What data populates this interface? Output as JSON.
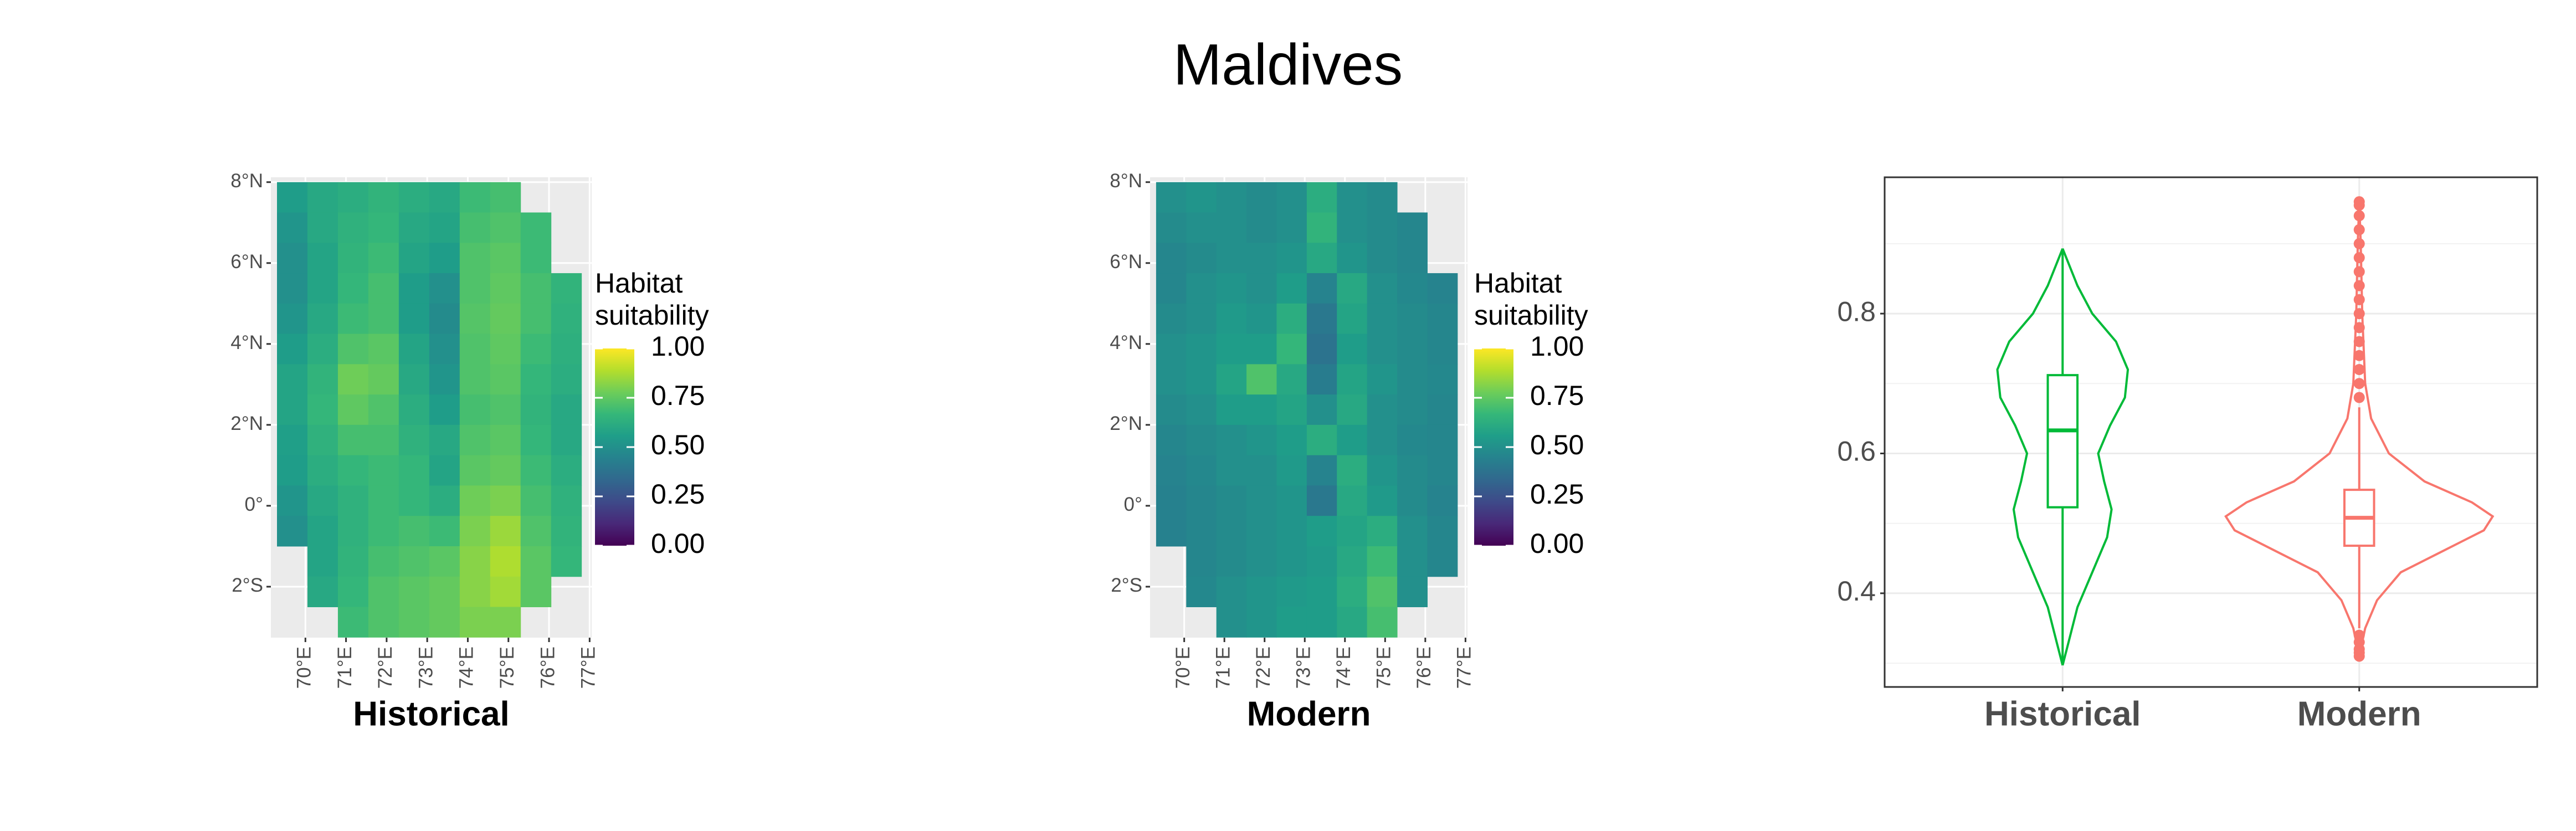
{
  "title": "Maldives",
  "chart_data": [
    {
      "type": "raster",
      "title": "Historical",
      "panel_color": "#EBEBEB",
      "grid": true,
      "xlim": [
        69.15,
        77.05
      ],
      "ylim": [
        -3.26,
        8.12
      ],
      "xticks": [
        {
          "value": 70,
          "label": "70°E"
        },
        {
          "value": 71,
          "label": "71°E"
        },
        {
          "value": 72,
          "label": "72°E"
        },
        {
          "value": 73,
          "label": "73°E"
        },
        {
          "value": 74,
          "label": "74°E"
        },
        {
          "value": 75,
          "label": "75°E"
        },
        {
          "value": 76,
          "label": "76°E"
        },
        {
          "value": 77,
          "label": "77°E"
        }
      ],
      "yticks": [
        {
          "value": -2,
          "label": "2°S"
        },
        {
          "value": 0,
          "label": "0°"
        },
        {
          "value": 2,
          "label": "2°N"
        },
        {
          "value": 4,
          "label": "4°N"
        },
        {
          "value": 6,
          "label": "6°N"
        },
        {
          "value": 8,
          "label": "8°N"
        }
      ],
      "lon_edges": [
        69.3,
        70.05,
        70.8,
        71.55,
        72.3,
        73.05,
        73.8,
        74.55,
        75.3,
        76.05,
        76.8
      ],
      "lat_edges": [
        8,
        7.25,
        6.5,
        5.75,
        5,
        4.25,
        3.5,
        2.75,
        2,
        1.25,
        0.5,
        -0.25,
        -1,
        -1.75,
        -2.5,
        -3.25
      ],
      "values": [
        [
          0.55,
          0.6,
          0.62,
          0.65,
          0.62,
          0.6,
          0.68,
          0.7,
          null,
          null
        ],
        [
          0.52,
          0.6,
          0.64,
          0.66,
          0.6,
          0.58,
          0.7,
          0.72,
          0.68,
          null
        ],
        [
          0.5,
          0.58,
          0.65,
          0.68,
          0.58,
          0.55,
          0.72,
          0.74,
          0.68,
          null
        ],
        [
          0.5,
          0.58,
          0.66,
          0.7,
          0.55,
          0.5,
          0.72,
          0.75,
          0.7,
          0.65
        ],
        [
          0.52,
          0.6,
          0.68,
          0.7,
          0.55,
          0.48,
          0.73,
          0.76,
          0.7,
          0.64
        ],
        [
          0.55,
          0.62,
          0.72,
          0.74,
          0.58,
          0.5,
          0.72,
          0.75,
          0.68,
          0.63
        ],
        [
          0.58,
          0.65,
          0.78,
          0.76,
          0.6,
          0.52,
          0.72,
          0.74,
          0.66,
          0.62
        ],
        [
          0.58,
          0.66,
          0.75,
          0.72,
          0.62,
          0.55,
          0.7,
          0.72,
          0.65,
          0.6
        ],
        [
          0.56,
          0.64,
          0.7,
          0.7,
          0.64,
          0.6,
          0.72,
          0.74,
          0.66,
          0.6
        ],
        [
          0.55,
          0.62,
          0.66,
          0.68,
          0.66,
          0.58,
          0.74,
          0.76,
          0.68,
          0.62
        ],
        [
          0.52,
          0.6,
          0.64,
          0.68,
          0.66,
          0.62,
          0.78,
          0.8,
          0.7,
          0.64
        ],
        [
          0.5,
          0.58,
          0.64,
          0.68,
          0.7,
          0.68,
          0.8,
          0.85,
          0.72,
          0.65
        ],
        [
          null,
          0.58,
          0.65,
          0.7,
          0.72,
          0.74,
          0.82,
          0.88,
          0.74,
          0.66
        ],
        [
          null,
          0.6,
          0.66,
          0.72,
          0.74,
          0.76,
          0.82,
          0.86,
          0.74,
          null
        ],
        [
          null,
          null,
          0.68,
          0.72,
          0.74,
          0.76,
          0.8,
          0.8,
          null,
          null
        ]
      ],
      "legend": {
        "title": "Habitat suitability",
        "limits": [
          0,
          1
        ],
        "colors": [
          "#440154",
          "#482878",
          "#3E4A89",
          "#31688E",
          "#26828E",
          "#1F9E89",
          "#35B779",
          "#6DCD59",
          "#B4DE2C",
          "#FDE725"
        ],
        "ticks": [
          {
            "value": 0,
            "label": "0.00"
          },
          {
            "value": 0.25,
            "label": "0.25"
          },
          {
            "value": 0.5,
            "label": "0.50"
          },
          {
            "value": 0.75,
            "label": "0.75"
          },
          {
            "value": 1,
            "label": "1.00"
          }
        ]
      }
    },
    {
      "type": "raster",
      "title": "Modern",
      "panel_color": "#EBEBEB",
      "grid": true,
      "xlim": [
        69.15,
        77.05
      ],
      "ylim": [
        -3.26,
        8.12
      ],
      "xticks": [
        {
          "value": 70,
          "label": "70°E"
        },
        {
          "value": 71,
          "label": "71°E"
        },
        {
          "value": 72,
          "label": "72°E"
        },
        {
          "value": 73,
          "label": "73°E"
        },
        {
          "value": 74,
          "label": "74°E"
        },
        {
          "value": 75,
          "label": "75°E"
        },
        {
          "value": 76,
          "label": "76°E"
        },
        {
          "value": 77,
          "label": "77°E"
        }
      ],
      "yticks": [
        {
          "value": -2,
          "label": "2°S"
        },
        {
          "value": 0,
          "label": "0°"
        },
        {
          "value": 2,
          "label": "2°N"
        },
        {
          "value": 4,
          "label": "4°N"
        },
        {
          "value": 6,
          "label": "6°N"
        },
        {
          "value": 8,
          "label": "8°N"
        }
      ],
      "lon_edges": [
        69.3,
        70.05,
        70.8,
        71.55,
        72.3,
        73.05,
        73.8,
        74.55,
        75.3,
        76.05,
        76.8
      ],
      "lat_edges": [
        8,
        7.25,
        6.5,
        5.75,
        5,
        4.25,
        3.5,
        2.75,
        2,
        1.25,
        0.5,
        -0.25,
        -1,
        -1.75,
        -2.5,
        -3.25
      ],
      "values": [
        [
          0.5,
          0.52,
          0.5,
          0.48,
          0.5,
          0.62,
          0.5,
          0.48,
          null,
          null
        ],
        [
          0.48,
          0.5,
          0.5,
          0.48,
          0.5,
          0.65,
          0.5,
          0.48,
          0.46,
          null
        ],
        [
          0.46,
          0.48,
          0.5,
          0.5,
          0.52,
          0.6,
          0.52,
          0.48,
          0.46,
          null
        ],
        [
          0.46,
          0.5,
          0.52,
          0.5,
          0.55,
          0.45,
          0.6,
          0.5,
          0.47,
          0.45
        ],
        [
          0.48,
          0.5,
          0.54,
          0.52,
          0.62,
          0.4,
          0.58,
          0.5,
          0.48,
          0.46
        ],
        [
          0.5,
          0.52,
          0.55,
          0.55,
          0.66,
          0.38,
          0.55,
          0.5,
          0.48,
          0.46
        ],
        [
          0.5,
          0.52,
          0.58,
          0.72,
          0.6,
          0.42,
          0.58,
          0.52,
          0.48,
          0.47
        ],
        [
          0.48,
          0.5,
          0.55,
          0.55,
          0.58,
          0.5,
          0.6,
          0.5,
          0.48,
          0.46
        ],
        [
          0.46,
          0.48,
          0.5,
          0.52,
          0.55,
          0.62,
          0.55,
          0.5,
          0.47,
          0.46
        ],
        [
          0.45,
          0.47,
          0.5,
          0.5,
          0.54,
          0.45,
          0.62,
          0.52,
          0.48,
          0.46
        ],
        [
          0.44,
          0.46,
          0.48,
          0.5,
          0.52,
          0.4,
          0.6,
          0.54,
          0.48,
          0.45
        ],
        [
          0.44,
          0.46,
          0.48,
          0.5,
          0.52,
          0.55,
          0.58,
          0.62,
          0.5,
          0.46
        ],
        [
          null,
          0.46,
          0.48,
          0.5,
          0.52,
          0.54,
          0.6,
          0.68,
          0.5,
          0.46
        ],
        [
          null,
          0.47,
          0.5,
          0.52,
          0.54,
          0.55,
          0.62,
          0.72,
          0.5,
          null
        ],
        [
          null,
          null,
          0.5,
          0.52,
          0.55,
          0.55,
          0.6,
          0.7,
          null,
          null
        ]
      ],
      "legend": {
        "title": "Habitat suitability",
        "limits": [
          0,
          1
        ],
        "colors": [
          "#440154",
          "#482878",
          "#3E4A89",
          "#31688E",
          "#26828E",
          "#1F9E89",
          "#35B779",
          "#6DCD59",
          "#B4DE2C",
          "#FDE725"
        ],
        "ticks": [
          {
            "value": 0,
            "label": "0.00"
          },
          {
            "value": 0.25,
            "label": "0.25"
          },
          {
            "value": 0.5,
            "label": "0.50"
          },
          {
            "value": 0.75,
            "label": "0.75"
          },
          {
            "value": 1,
            "label": "1.00"
          }
        ]
      }
    },
    {
      "type": "violin",
      "grid": true,
      "categories": [
        "Historical",
        "Modern"
      ],
      "colors": [
        "#00BA38",
        "#F8766D"
      ],
      "ylim": [
        0.266,
        0.995
      ],
      "yticks": [
        0.4,
        0.6,
        0.8
      ],
      "minor_yticks": [
        0.3,
        0.5,
        0.7,
        0.9
      ],
      "violins": [
        {
          "density_y": [
            0.297,
            0.33,
            0.38,
            0.43,
            0.48,
            0.52,
            0.56,
            0.6,
            0.64,
            0.68,
            0.72,
            0.76,
            0.8,
            0.84,
            0.893
          ],
          "density": [
            0,
            0.02,
            0.05,
            0.1,
            0.15,
            0.165,
            0.14,
            0.12,
            0.16,
            0.21,
            0.22,
            0.18,
            0.1,
            0.05,
            0
          ],
          "whisker_low": 0.297,
          "q1": 0.523,
          "median": 0.633,
          "q3": 0.712,
          "whisker_high": 0.893
        },
        {
          "density_y": [
            0.31,
            0.35,
            0.39,
            0.43,
            0.46,
            0.49,
            0.51,
            0.53,
            0.56,
            0.6,
            0.65,
            0.7,
            0.8,
            0.9,
            0.96
          ],
          "density": [
            0,
            0.02,
            0.06,
            0.14,
            0.28,
            0.42,
            0.45,
            0.38,
            0.22,
            0.1,
            0.04,
            0.02,
            0.01,
            0.005,
            0
          ],
          "whisker_low": 0.35,
          "q1": 0.468,
          "median": 0.508,
          "q3": 0.548,
          "whisker_high": 0.666,
          "outliers": [
            0.31,
            0.315,
            0.32,
            0.33,
            0.34,
            0.68,
            0.7,
            0.72,
            0.74,
            0.76,
            0.78,
            0.8,
            0.82,
            0.84,
            0.86,
            0.88,
            0.9,
            0.92,
            0.94,
            0.955,
            0.96
          ]
        }
      ]
    }
  ]
}
